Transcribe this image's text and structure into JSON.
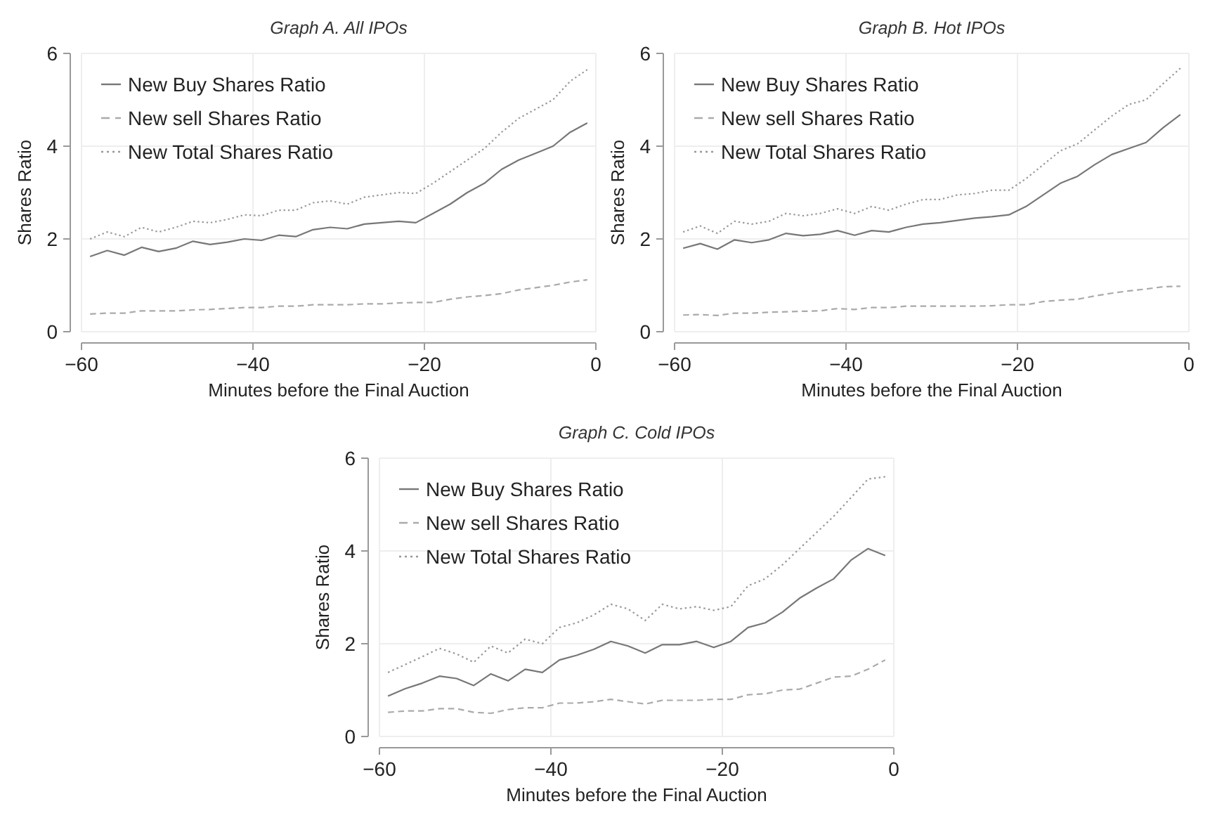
{
  "chart_data": [
    {
      "type": "line",
      "title": "Graph A. All IPOs",
      "xlabel": "Minutes before the Final Auction",
      "ylabel": "Shares Ratio",
      "xlim": [
        -60,
        0
      ],
      "ylim": [
        0,
        6
      ],
      "xticks": [
        {
          "value": -60,
          "label": "−60"
        },
        {
          "value": -40,
          "label": "−40"
        },
        {
          "value": -20,
          "label": "−20"
        },
        {
          "value": 0,
          "label": "0"
        }
      ],
      "yticks": [
        0,
        2,
        4,
        6
      ],
      "grid": true,
      "legend": "top left",
      "marker": "none",
      "x": [
        -59,
        -57,
        -55,
        -53,
        -51,
        -49,
        -47,
        -45,
        -43,
        -41,
        -39,
        -37,
        -35,
        -33,
        -31,
        -29,
        -27,
        -25,
        -23,
        -21,
        -19,
        -17,
        -15,
        -13,
        -11,
        -9,
        -7,
        -5,
        -3,
        -1
      ],
      "series": [
        {
          "name": "New Buy Shares Ratio",
          "color": "#777777",
          "line_style": "solid",
          "values": [
            1.62,
            1.75,
            1.65,
            1.82,
            1.73,
            1.8,
            1.95,
            1.88,
            1.93,
            2.0,
            1.97,
            2.08,
            2.05,
            2.2,
            2.25,
            2.22,
            2.32,
            2.35,
            2.38,
            2.35,
            2.55,
            2.75,
            3.0,
            3.2,
            3.5,
            3.7,
            3.85,
            4.0,
            4.3,
            4.5
          ]
        },
        {
          "name": "New sell Shares Ratio",
          "color": "#aaaaaa",
          "line_style": "dashed",
          "values": [
            0.38,
            0.4,
            0.4,
            0.45,
            0.45,
            0.45,
            0.47,
            0.48,
            0.5,
            0.52,
            0.52,
            0.55,
            0.55,
            0.58,
            0.58,
            0.58,
            0.6,
            0.6,
            0.62,
            0.63,
            0.63,
            0.7,
            0.75,
            0.78,
            0.82,
            0.9,
            0.95,
            1.0,
            1.07,
            1.12
          ]
        },
        {
          "name": "New Total Shares Ratio",
          "color": "#999999",
          "line_style": "dotted",
          "values": [
            2.0,
            2.15,
            2.05,
            2.25,
            2.15,
            2.25,
            2.38,
            2.35,
            2.42,
            2.52,
            2.5,
            2.62,
            2.62,
            2.78,
            2.82,
            2.75,
            2.9,
            2.95,
            3.0,
            2.98,
            3.2,
            3.45,
            3.7,
            3.95,
            4.3,
            4.6,
            4.8,
            5.0,
            5.4,
            5.65
          ]
        }
      ]
    },
    {
      "type": "line",
      "title": "Graph B. Hot IPOs",
      "xlabel": "Minutes before the Final Auction",
      "ylabel": "Shares Ratio",
      "xlim": [
        -60,
        0
      ],
      "ylim": [
        0,
        6
      ],
      "xticks": [
        {
          "value": -60,
          "label": "−60"
        },
        {
          "value": -40,
          "label": "−40"
        },
        {
          "value": -20,
          "label": "−20"
        },
        {
          "value": 0,
          "label": "0"
        }
      ],
      "yticks": [
        0,
        2,
        4,
        6
      ],
      "grid": true,
      "legend": "top left",
      "marker": "none",
      "x": [
        -59,
        -57,
        -55,
        -53,
        -51,
        -49,
        -47,
        -45,
        -43,
        -41,
        -39,
        -37,
        -35,
        -33,
        -31,
        -29,
        -27,
        -25,
        -23,
        -21,
        -19,
        -17,
        -15,
        -13,
        -11,
        -9,
        -7,
        -5,
        -3,
        -1
      ],
      "series": [
        {
          "name": "New Buy Shares Ratio",
          "color": "#777777",
          "line_style": "solid",
          "values": [
            1.8,
            1.9,
            1.78,
            1.98,
            1.92,
            1.98,
            2.12,
            2.07,
            2.1,
            2.18,
            2.08,
            2.18,
            2.15,
            2.25,
            2.32,
            2.35,
            2.4,
            2.45,
            2.48,
            2.52,
            2.7,
            2.95,
            3.2,
            3.35,
            3.6,
            3.82,
            3.95,
            4.08,
            4.4,
            4.68
          ]
        },
        {
          "name": "New sell Shares Ratio",
          "color": "#aaaaaa",
          "line_style": "dashed",
          "values": [
            0.36,
            0.37,
            0.35,
            0.4,
            0.4,
            0.42,
            0.43,
            0.44,
            0.45,
            0.5,
            0.48,
            0.52,
            0.52,
            0.55,
            0.55,
            0.55,
            0.55,
            0.55,
            0.56,
            0.58,
            0.58,
            0.65,
            0.68,
            0.7,
            0.77,
            0.83,
            0.88,
            0.92,
            0.97,
            0.98
          ]
        },
        {
          "name": "New Total Shares Ratio",
          "color": "#999999",
          "line_style": "dotted",
          "values": [
            2.15,
            2.28,
            2.12,
            2.38,
            2.32,
            2.38,
            2.55,
            2.5,
            2.55,
            2.65,
            2.55,
            2.7,
            2.62,
            2.75,
            2.85,
            2.85,
            2.95,
            2.98,
            3.05,
            3.05,
            3.3,
            3.6,
            3.9,
            4.05,
            4.35,
            4.65,
            4.9,
            5.0,
            5.35,
            5.68
          ]
        }
      ]
    },
    {
      "type": "line",
      "title": "Graph C. Cold IPOs",
      "xlabel": "Minutes before the Final Auction",
      "ylabel": "Shares Ratio",
      "xlim": [
        -60,
        0
      ],
      "ylim": [
        0,
        6
      ],
      "xticks": [
        {
          "value": -60,
          "label": "−60"
        },
        {
          "value": -40,
          "label": "−40"
        },
        {
          "value": -20,
          "label": "−20"
        },
        {
          "value": 0,
          "label": "0"
        }
      ],
      "yticks": [
        0,
        2,
        4,
        6
      ],
      "grid": true,
      "legend": "top left",
      "marker": "none",
      "x": [
        -59,
        -57,
        -55,
        -53,
        -51,
        -49,
        -47,
        -45,
        -43,
        -41,
        -39,
        -37,
        -35,
        -33,
        -31,
        -29,
        -27,
        -25,
        -23,
        -21,
        -19,
        -17,
        -15,
        -13,
        -11,
        -9,
        -7,
        -5,
        -3,
        -1
      ],
      "series": [
        {
          "name": "New Buy Shares Ratio",
          "color": "#777777",
          "line_style": "solid",
          "values": [
            0.87,
            1.03,
            1.15,
            1.3,
            1.25,
            1.1,
            1.35,
            1.2,
            1.45,
            1.38,
            1.65,
            1.75,
            1.88,
            2.05,
            1.95,
            1.8,
            1.98,
            1.98,
            2.05,
            1.92,
            2.05,
            2.35,
            2.45,
            2.68,
            2.98,
            3.2,
            3.4,
            3.8,
            4.05,
            3.9
          ]
        },
        {
          "name": "New sell Shares Ratio",
          "color": "#aaaaaa",
          "line_style": "dashed",
          "values": [
            0.52,
            0.55,
            0.55,
            0.6,
            0.6,
            0.52,
            0.5,
            0.58,
            0.62,
            0.62,
            0.72,
            0.72,
            0.75,
            0.8,
            0.75,
            0.7,
            0.78,
            0.78,
            0.78,
            0.8,
            0.8,
            0.9,
            0.92,
            1.0,
            1.02,
            1.15,
            1.28,
            1.3,
            1.45,
            1.65
          ]
        },
        {
          "name": "New Total Shares Ratio",
          "color": "#999999",
          "line_style": "dotted",
          "values": [
            1.38,
            1.55,
            1.72,
            1.9,
            1.78,
            1.6,
            1.95,
            1.8,
            2.1,
            2.0,
            2.35,
            2.45,
            2.62,
            2.85,
            2.75,
            2.5,
            2.85,
            2.75,
            2.8,
            2.72,
            2.8,
            3.25,
            3.4,
            3.7,
            4.05,
            4.4,
            4.75,
            5.15,
            5.55,
            5.6
          ]
        }
      ]
    }
  ]
}
